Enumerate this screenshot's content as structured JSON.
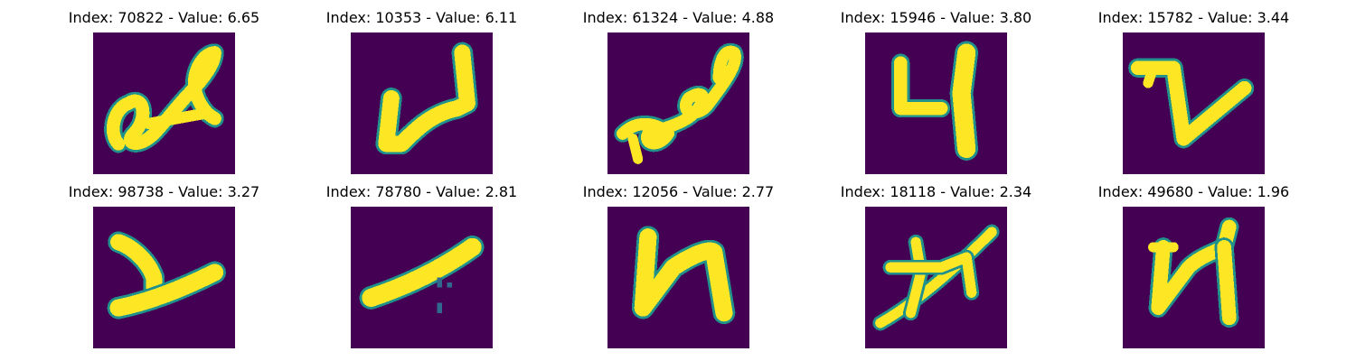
{
  "colors": {
    "background": "#440154",
    "stroke": "#fde725",
    "edge_mid": "#21918c",
    "edge_dark": "#31688e"
  },
  "panels": [
    {
      "title": "Index: 70822 - Value: 6.65",
      "index": 70822,
      "value": 6.65,
      "glyph": "a-like",
      "image_description": "glyph resembling cursive 'a' tilted right"
    },
    {
      "title": "Index: 10353 - Value: 6.11",
      "index": 10353,
      "value": 6.11,
      "glyph": "4-like",
      "image_description": "glyph resembling a '4' with a long horizontal bar"
    },
    {
      "title": "Index: 61324 - Value: 4.88",
      "index": 61324,
      "value": 4.88,
      "glyph": "scribble",
      "image_description": "cursive looped scribble"
    },
    {
      "title": "Index: 15946 - Value: 3.80",
      "index": 15946,
      "value": 3.8,
      "glyph": "4",
      "image_description": "digit 4"
    },
    {
      "title": "Index: 15782 - Value: 3.44",
      "index": 15782,
      "value": 3.44,
      "glyph": "z-like",
      "image_description": "glyph resembling a 'z' with a checkmark tail"
    },
    {
      "title": "Index: 98738 - Value: 3.27",
      "index": 98738,
      "value": 3.27,
      "glyph": "y-like",
      "image_description": "glyph resembling a 'y'"
    },
    {
      "title": "Index: 78780 - Value: 2.81",
      "index": 78780,
      "value": 2.81,
      "glyph": "slash",
      "image_description": "thick diagonal stroke"
    },
    {
      "title": "Index: 12056 - Value: 2.77",
      "index": 12056,
      "value": 2.77,
      "glyph": "N-like",
      "image_description": "glyph resembling 'N' / 'u'"
    },
    {
      "title": "Index: 18118 - Value: 2.34",
      "index": 18118,
      "value": 2.34,
      "glyph": "x-like",
      "image_description": "glyph resembling 'x' with a long diagonal"
    },
    {
      "title": "Index: 49680 - Value: 1.96",
      "index": 49680,
      "value": 1.96,
      "glyph": "N-like",
      "image_description": "glyph resembling 'N'"
    }
  ]
}
